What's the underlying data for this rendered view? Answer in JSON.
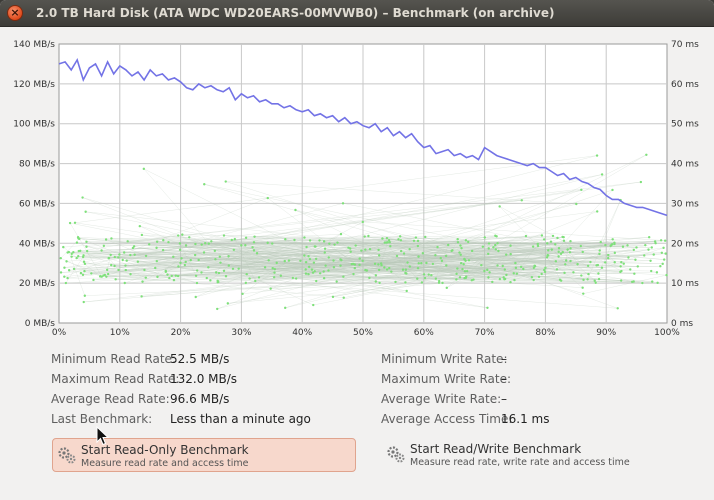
{
  "window": {
    "title": "2.0 TB Hard Disk (ATA WDC WD20EARS-00MVWB0) – Benchmark (on archive)",
    "close_icon": "close-icon"
  },
  "chart_data": {
    "type": "line",
    "title": "",
    "xlabel": "",
    "ylabel": "",
    "x_ticks": [
      "0%",
      "10%",
      "20%",
      "30%",
      "40%",
      "50%",
      "60%",
      "70%",
      "80%",
      "90%",
      "100%"
    ],
    "y_left_ticks": [
      "0 MB/s",
      "20 MB/s",
      "40 MB/s",
      "60 MB/s",
      "80 MB/s",
      "100 MB/s",
      "120 MB/s",
      "140 MB/s"
    ],
    "y_right_ticks": [
      "0 ms",
      "10 ms",
      "20 ms",
      "30 ms",
      "40 ms",
      "50 ms",
      "60 ms",
      "70 ms"
    ],
    "xlim": [
      0,
      100
    ],
    "ylim_left": [
      0,
      140
    ],
    "ylim_right": [
      0,
      70
    ],
    "grid": true,
    "colors": {
      "read": "#7373e6",
      "access": "#7ee07a",
      "grid": "#c8c8c8"
    },
    "series": [
      {
        "axis": "left",
        "x": [
          0,
          1,
          2,
          3,
          4,
          5,
          6,
          7,
          8,
          9,
          10,
          11,
          12,
          13,
          14,
          15,
          16,
          17,
          18,
          19,
          20,
          21,
          22,
          23,
          24,
          25,
          26,
          27,
          28,
          29,
          30,
          31,
          32,
          33,
          34,
          35,
          36,
          37,
          38,
          39,
          40,
          41,
          42,
          43,
          44,
          45,
          46,
          47,
          48,
          49,
          50,
          51,
          52,
          53,
          54,
          55,
          56,
          57,
          58,
          59,
          60,
          61,
          62,
          63,
          64,
          65,
          66,
          67,
          68,
          69,
          70,
          71,
          72,
          73,
          74,
          75,
          76,
          77,
          78,
          79,
          80,
          81,
          82,
          83,
          84,
          85,
          86,
          87,
          88,
          89,
          90,
          91,
          92,
          93,
          94,
          95,
          96,
          97,
          98,
          99,
          100
        ],
        "values": [
          130,
          131,
          127,
          132,
          122,
          128,
          130,
          124,
          131,
          125,
          129,
          127,
          124,
          126,
          122,
          127,
          124,
          125,
          122,
          123,
          121,
          118,
          117,
          120,
          118,
          119,
          117,
          116,
          118,
          112,
          115,
          113,
          114,
          111,
          112,
          110,
          110,
          108,
          109,
          107,
          106,
          107,
          104,
          105,
          103,
          104,
          101,
          103,
          100,
          101,
          99,
          98,
          100,
          96,
          98,
          94,
          96,
          93,
          95,
          91,
          88,
          89,
          85,
          86,
          87,
          84,
          85,
          83,
          84,
          82,
          88,
          86,
          84,
          83,
          82,
          81,
          80,
          79,
          80,
          78,
          78,
          76,
          74,
          75,
          72,
          73,
          71,
          70,
          68,
          67,
          64,
          62,
          62,
          60,
          59,
          58,
          58,
          57,
          56,
          55,
          54
        ]
      }
    ],
    "access_time_scatter_ms": "scattered samples mostly between 10 ms and 25 ms"
  },
  "stats": {
    "left": [
      {
        "label": "Minimum Read Rate:",
        "value": "52.5 MB/s"
      },
      {
        "label": "Maximum Read Rate:",
        "value": "132.0 MB/s"
      },
      {
        "label": "Average Read Rate:",
        "value": "96.6 MB/s"
      },
      {
        "label": "Last Benchmark:",
        "value": "Less than a minute ago"
      }
    ],
    "right": [
      {
        "label": "Minimum Write Rate:",
        "value": "–"
      },
      {
        "label": "Maximum Write Rate:",
        "value": "–"
      },
      {
        "label": "Average Write Rate:",
        "value": "–"
      },
      {
        "label": "Average Access Time:",
        "value": "16.1 ms"
      }
    ]
  },
  "buttons": {
    "read_only": {
      "title": "Start Read-Only Benchmark",
      "subtitle": "Measure read rate and access time",
      "icon": "gears-icon"
    },
    "read_write": {
      "title": "Start Read/Write Benchmark",
      "subtitle": "Measure read rate, write rate and access time",
      "icon": "gears-icon"
    }
  }
}
